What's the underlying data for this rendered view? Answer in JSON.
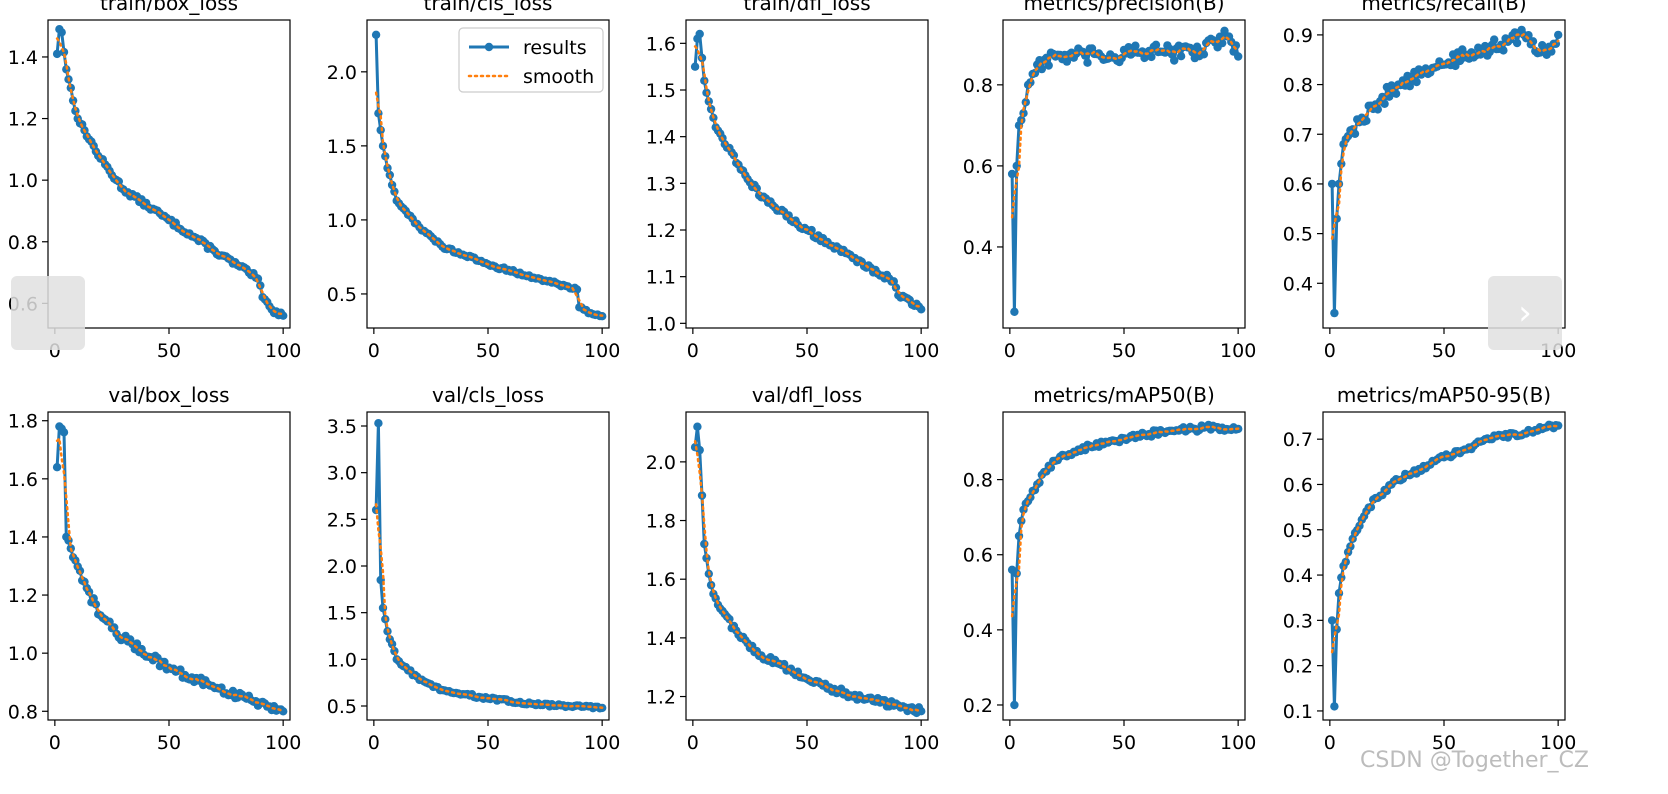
{
  "watermark": "CSDN @Together_CZ",
  "navigation": {
    "prev_icon": "chevron-left-icon",
    "next_icon": "chevron-right-icon",
    "next_glyph": "›"
  },
  "colors": {
    "results": "#1f77b4",
    "smooth": "#ff7f0e",
    "axis": "#000000",
    "nav_bg": "#e1e1e1"
  },
  "chart_data": [
    {
      "type": "line",
      "title": "train/box_loss",
      "xlim": [
        -3,
        103
      ],
      "ylim": [
        0.52,
        1.52
      ],
      "yticks": [
        0.6,
        0.8,
        1.0,
        1.2,
        1.4
      ],
      "yticklabels": [
        "0.6",
        "0.8",
        "1.0",
        "1.2",
        "1.4"
      ],
      "xticks": [
        0,
        50,
        100
      ],
      "xticklabels": [
        "0",
        "50",
        "100"
      ],
      "keypoints": [
        [
          1,
          1.41
        ],
        [
          2,
          1.49
        ],
        [
          3,
          1.48
        ],
        [
          5,
          1.36
        ],
        [
          10,
          1.2
        ],
        [
          20,
          1.07
        ],
        [
          30,
          0.97
        ],
        [
          50,
          0.87
        ],
        [
          70,
          0.77
        ],
        [
          85,
          0.7
        ],
        [
          89,
          0.68
        ],
        [
          91,
          0.62
        ],
        [
          95,
          0.58
        ],
        [
          100,
          0.56
        ]
      ],
      "noise": 0.008,
      "legend": null
    },
    {
      "type": "line",
      "title": "train/cls_loss",
      "xlim": [
        -3,
        103
      ],
      "ylim": [
        0.27,
        2.35
      ],
      "yticks": [
        0.5,
        1.0,
        1.5,
        2.0
      ],
      "yticklabels": [
        "0.5",
        "1.0",
        "1.5",
        "2.0"
      ],
      "xticks": [
        0,
        50,
        100
      ],
      "xticklabels": [
        "0",
        "50",
        "100"
      ],
      "keypoints": [
        [
          1,
          2.25
        ],
        [
          2,
          1.72
        ],
        [
          4,
          1.5
        ],
        [
          6,
          1.35
        ],
        [
          10,
          1.13
        ],
        [
          20,
          0.95
        ],
        [
          30,
          0.82
        ],
        [
          50,
          0.7
        ],
        [
          70,
          0.61
        ],
        [
          85,
          0.55
        ],
        [
          89,
          0.53
        ],
        [
          90,
          0.41
        ],
        [
          95,
          0.37
        ],
        [
          100,
          0.35
        ]
      ],
      "noise": 0.01,
      "legend": {
        "position": "top-right",
        "entries": [
          "results",
          "smooth"
        ]
      }
    },
    {
      "type": "line",
      "title": "train/dfl_loss",
      "xlim": [
        -3,
        103
      ],
      "ylim": [
        0.99,
        1.65
      ],
      "yticks": [
        1.0,
        1.1,
        1.2,
        1.3,
        1.4,
        1.5,
        1.6
      ],
      "yticklabels": [
        "1.0",
        "1.1",
        "1.2",
        "1.3",
        "1.4",
        "1.5",
        "1.6"
      ],
      "xticks": [
        0,
        50,
        100
      ],
      "xticklabels": [
        "0",
        "50",
        "100"
      ],
      "keypoints": [
        [
          1,
          1.55
        ],
        [
          2,
          1.61
        ],
        [
          3,
          1.62
        ],
        [
          5,
          1.52
        ],
        [
          10,
          1.42
        ],
        [
          20,
          1.34
        ],
        [
          30,
          1.27
        ],
        [
          50,
          1.2
        ],
        [
          70,
          1.14
        ],
        [
          88,
          1.09
        ],
        [
          90,
          1.06
        ],
        [
          95,
          1.05
        ],
        [
          100,
          1.03
        ]
      ],
      "noise": 0.006,
      "legend": null
    },
    {
      "type": "line",
      "title": "metrics/precision(B)",
      "xlim": [
        -3,
        103
      ],
      "ylim": [
        0.2,
        0.96
      ],
      "yticks": [
        0.4,
        0.6,
        0.8
      ],
      "yticklabels": [
        "0.4",
        "0.6",
        "0.8"
      ],
      "xticks": [
        0,
        50,
        100
      ],
      "xticklabels": [
        "0",
        "50",
        "100"
      ],
      "keypoints": [
        [
          1,
          0.58
        ],
        [
          2,
          0.24
        ],
        [
          3,
          0.6
        ],
        [
          4,
          0.7
        ],
        [
          6,
          0.73
        ],
        [
          8,
          0.8
        ],
        [
          12,
          0.85
        ],
        [
          20,
          0.87
        ],
        [
          40,
          0.87
        ],
        [
          60,
          0.88
        ],
        [
          80,
          0.88
        ],
        [
          95,
          0.92
        ],
        [
          100,
          0.87
        ]
      ],
      "noise": 0.02,
      "legend": null
    },
    {
      "type": "line",
      "title": "metrics/recall(B)",
      "xlim": [
        -3,
        103
      ],
      "ylim": [
        0.31,
        0.93
      ],
      "yticks": [
        0.4,
        0.5,
        0.6,
        0.7,
        0.8,
        0.9
      ],
      "yticklabels": [
        "0.4",
        "0.5",
        "0.6",
        "0.7",
        "0.8",
        "0.9"
      ],
      "xticks": [
        0,
        50,
        100
      ],
      "xticklabels": [
        "0",
        "50",
        "100"
      ],
      "keypoints": [
        [
          1,
          0.6
        ],
        [
          2,
          0.34
        ],
        [
          3,
          0.53
        ],
        [
          4,
          0.6
        ],
        [
          6,
          0.68
        ],
        [
          10,
          0.71
        ],
        [
          20,
          0.76
        ],
        [
          30,
          0.8
        ],
        [
          40,
          0.82
        ],
        [
          50,
          0.84
        ],
        [
          60,
          0.86
        ],
        [
          75,
          0.88
        ],
        [
          85,
          0.9
        ],
        [
          95,
          0.86
        ],
        [
          100,
          0.9
        ]
      ],
      "noise": 0.015,
      "legend": null
    },
    {
      "type": "line",
      "title": "val/box_loss",
      "xlim": [
        -3,
        103
      ],
      "ylim": [
        0.77,
        1.83
      ],
      "yticks": [
        0.8,
        1.0,
        1.2,
        1.4,
        1.6,
        1.8
      ],
      "yticklabels": [
        "0.8",
        "1.0",
        "1.2",
        "1.4",
        "1.6",
        "1.8"
      ],
      "xticks": [
        0,
        50,
        100
      ],
      "xticklabels": [
        "0",
        "50",
        "100"
      ],
      "keypoints": [
        [
          1,
          1.64
        ],
        [
          2,
          1.78
        ],
        [
          4,
          1.76
        ],
        [
          5,
          1.4
        ],
        [
          8,
          1.33
        ],
        [
          12,
          1.25
        ],
        [
          20,
          1.13
        ],
        [
          30,
          1.05
        ],
        [
          50,
          0.95
        ],
        [
          70,
          0.88
        ],
        [
          90,
          0.83
        ],
        [
          100,
          0.8
        ]
      ],
      "noise": 0.015,
      "legend": null
    },
    {
      "type": "line",
      "title": "val/cls_loss",
      "xlim": [
        -3,
        103
      ],
      "ylim": [
        0.35,
        3.65
      ],
      "yticks": [
        0.5,
        1.0,
        1.5,
        2.0,
        2.5,
        3.0,
        3.5
      ],
      "yticklabels": [
        "0.5",
        "1.0",
        "1.5",
        "2.0",
        "2.5",
        "3.0",
        "3.5"
      ],
      "xticks": [
        0,
        50,
        100
      ],
      "xticklabels": [
        "0",
        "50",
        "100"
      ],
      "keypoints": [
        [
          1,
          2.6
        ],
        [
          2,
          3.53
        ],
        [
          3,
          1.85
        ],
        [
          4,
          1.55
        ],
        [
          6,
          1.3
        ],
        [
          10,
          1.0
        ],
        [
          20,
          0.78
        ],
        [
          30,
          0.67
        ],
        [
          50,
          0.58
        ],
        [
          70,
          0.52
        ],
        [
          85,
          0.5
        ],
        [
          100,
          0.48
        ]
      ],
      "noise": 0.015,
      "legend": null
    },
    {
      "type": "line",
      "title": "val/dfl_loss",
      "xlim": [
        -3,
        103
      ],
      "ylim": [
        1.12,
        2.17
      ],
      "yticks": [
        1.2,
        1.4,
        1.6,
        1.8,
        2.0
      ],
      "yticklabels": [
        "1.2",
        "1.4",
        "1.6",
        "1.8",
        "2.0"
      ],
      "xticks": [
        0,
        50,
        100
      ],
      "xticklabels": [
        "0",
        "50",
        "100"
      ],
      "keypoints": [
        [
          1,
          2.05
        ],
        [
          2,
          2.12
        ],
        [
          3,
          2.04
        ],
        [
          5,
          1.72
        ],
        [
          8,
          1.58
        ],
        [
          12,
          1.5
        ],
        [
          20,
          1.41
        ],
        [
          30,
          1.34
        ],
        [
          50,
          1.26
        ],
        [
          70,
          1.2
        ],
        [
          90,
          1.17
        ],
        [
          100,
          1.15
        ]
      ],
      "noise": 0.012,
      "legend": null
    },
    {
      "type": "line",
      "title": "metrics/mAP50(B)",
      "xlim": [
        -3,
        103
      ],
      "ylim": [
        0.16,
        0.98
      ],
      "yticks": [
        0.2,
        0.4,
        0.6,
        0.8
      ],
      "yticklabels": [
        "0.2",
        "0.4",
        "0.6",
        "0.8"
      ],
      "xticks": [
        0,
        50,
        100
      ],
      "xticklabels": [
        "0",
        "50",
        "100"
      ],
      "keypoints": [
        [
          1,
          0.56
        ],
        [
          2,
          0.2
        ],
        [
          3,
          0.55
        ],
        [
          4,
          0.65
        ],
        [
          6,
          0.72
        ],
        [
          10,
          0.77
        ],
        [
          15,
          0.82
        ],
        [
          20,
          0.85
        ],
        [
          30,
          0.88
        ],
        [
          50,
          0.91
        ],
        [
          70,
          0.93
        ],
        [
          90,
          0.94
        ],
        [
          100,
          0.935
        ]
      ],
      "noise": 0.008,
      "legend": null
    },
    {
      "type": "line",
      "title": "metrics/mAP50-95(B)",
      "xlim": [
        -3,
        103
      ],
      "ylim": [
        0.08,
        0.76
      ],
      "yticks": [
        0.1,
        0.2,
        0.3,
        0.4,
        0.5,
        0.6,
        0.7
      ],
      "yticklabels": [
        "0.1",
        "0.2",
        "0.3",
        "0.4",
        "0.5",
        "0.6",
        "0.7"
      ],
      "xticks": [
        0,
        50,
        100
      ],
      "xticklabels": [
        "0",
        "50",
        "100"
      ],
      "keypoints": [
        [
          1,
          0.3
        ],
        [
          2,
          0.11
        ],
        [
          3,
          0.28
        ],
        [
          4,
          0.36
        ],
        [
          6,
          0.42
        ],
        [
          10,
          0.48
        ],
        [
          15,
          0.53
        ],
        [
          20,
          0.57
        ],
        [
          30,
          0.61
        ],
        [
          50,
          0.66
        ],
        [
          70,
          0.7
        ],
        [
          90,
          0.72
        ],
        [
          100,
          0.73
        ]
      ],
      "noise": 0.006,
      "legend": null
    }
  ]
}
